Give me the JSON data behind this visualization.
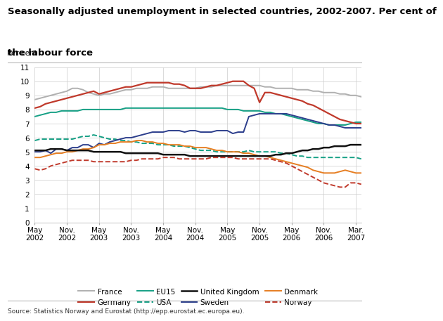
{
  "title_line1": "Seasonally adjusted unemployment in selected countries, 2002-2007. Per cent of",
  "title_line2": "the labour force",
  "ylabel": "Per cent",
  "source": "Source: Statistics Norway and Eurostat (http://epp.eurostat.ec.europa.eu).",
  "ylim": [
    0,
    11
  ],
  "yticks": [
    0,
    1,
    2,
    3,
    4,
    5,
    6,
    7,
    8,
    9,
    10,
    11
  ],
  "x_tick_positions": [
    0,
    6,
    12,
    18,
    24,
    30,
    36,
    42,
    48,
    54,
    60
  ],
  "x_labels": [
    "May\n2002",
    "Nov.\n2002",
    "May\n2003",
    "Nov.\n2003",
    "May\n2004",
    "Nov.\n2004",
    "May\n2005",
    "Nov.\n2005",
    "May\n2006",
    "Nov.\n2006",
    "Mar.\n2007"
  ],
  "n_points": 62,
  "series": {
    "France": {
      "color": "#b0b0b0",
      "linestyle": "solid",
      "linewidth": 1.4,
      "values": [
        8.7,
        8.8,
        8.9,
        9.0,
        9.1,
        9.2,
        9.3,
        9.5,
        9.5,
        9.4,
        9.2,
        9.1,
        9.0,
        9.1,
        9.1,
        9.2,
        9.3,
        9.4,
        9.4,
        9.5,
        9.5,
        9.5,
        9.6,
        9.6,
        9.6,
        9.5,
        9.5,
        9.5,
        9.5,
        9.5,
        9.5,
        9.6,
        9.6,
        9.6,
        9.7,
        9.7,
        9.7,
        9.7,
        9.7,
        9.7,
        9.7,
        9.7,
        9.7,
        9.6,
        9.6,
        9.5,
        9.5,
        9.5,
        9.5,
        9.4,
        9.4,
        9.4,
        9.3,
        9.3,
        9.2,
        9.2,
        9.2,
        9.1,
        9.1,
        9.0,
        9.0,
        8.9
      ]
    },
    "Germany": {
      "color": "#c0392b",
      "linestyle": "solid",
      "linewidth": 1.6,
      "values": [
        8.1,
        8.2,
        8.4,
        8.5,
        8.6,
        8.7,
        8.8,
        8.9,
        9.0,
        9.1,
        9.2,
        9.3,
        9.1,
        9.2,
        9.3,
        9.4,
        9.5,
        9.6,
        9.6,
        9.7,
        9.8,
        9.9,
        9.9,
        9.9,
        9.9,
        9.9,
        9.8,
        9.8,
        9.7,
        9.5,
        9.5,
        9.5,
        9.6,
        9.7,
        9.7,
        9.8,
        9.9,
        10.0,
        10.0,
        10.0,
        9.7,
        9.5,
        8.5,
        9.2,
        9.2,
        9.1,
        9.0,
        8.9,
        8.8,
        8.7,
        8.6,
        8.4,
        8.3,
        8.1,
        7.9,
        7.7,
        7.5,
        7.3,
        7.2,
        7.1,
        7.0,
        7.0
      ]
    },
    "EU15": {
      "color": "#16a085",
      "linestyle": "solid",
      "linewidth": 1.4,
      "values": [
        7.5,
        7.6,
        7.7,
        7.8,
        7.8,
        7.9,
        7.9,
        7.9,
        7.9,
        8.0,
        8.0,
        8.0,
        8.0,
        8.0,
        8.0,
        8.0,
        8.0,
        8.1,
        8.1,
        8.1,
        8.1,
        8.1,
        8.1,
        8.1,
        8.1,
        8.1,
        8.1,
        8.1,
        8.1,
        8.1,
        8.1,
        8.1,
        8.1,
        8.1,
        8.1,
        8.1,
        8.0,
        8.0,
        8.0,
        7.9,
        7.9,
        7.9,
        7.9,
        7.8,
        7.8,
        7.7,
        7.7,
        7.6,
        7.5,
        7.4,
        7.3,
        7.2,
        7.1,
        7.0,
        7.0,
        6.9,
        6.9,
        6.9,
        6.9,
        7.0,
        7.1,
        7.1
      ]
    },
    "USA": {
      "color": "#16a085",
      "linestyle": "dashed",
      "linewidth": 1.4,
      "values": [
        5.8,
        5.9,
        5.9,
        5.9,
        5.9,
        5.9,
        5.9,
        5.9,
        6.0,
        6.1,
        6.1,
        6.2,
        6.1,
        6.0,
        5.9,
        5.9,
        5.8,
        5.8,
        5.7,
        5.7,
        5.6,
        5.6,
        5.6,
        5.5,
        5.5,
        5.5,
        5.4,
        5.4,
        5.4,
        5.3,
        5.2,
        5.1,
        5.1,
        5.1,
        5.0,
        5.0,
        5.0,
        5.0,
        5.0,
        5.0,
        5.1,
        5.0,
        5.0,
        5.0,
        5.0,
        5.0,
        4.9,
        4.9,
        4.8,
        4.7,
        4.7,
        4.6,
        4.6,
        4.6,
        4.6,
        4.6,
        4.6,
        4.6,
        4.6,
        4.6,
        4.6,
        4.5
      ]
    },
    "United Kingdom": {
      "color": "#111111",
      "linestyle": "solid",
      "linewidth": 1.8,
      "values": [
        5.1,
        5.1,
        5.1,
        5.2,
        5.2,
        5.2,
        5.1,
        5.1,
        5.1,
        5.1,
        5.1,
        5.0,
        5.0,
        5.0,
        5.0,
        5.0,
        5.0,
        4.9,
        4.9,
        4.9,
        4.9,
        4.9,
        4.9,
        4.9,
        4.8,
        4.8,
        4.8,
        4.8,
        4.8,
        4.7,
        4.7,
        4.7,
        4.7,
        4.7,
        4.7,
        4.7,
        4.7,
        4.7,
        4.7,
        4.7,
        4.7,
        4.7,
        4.7,
        4.7,
        4.7,
        4.8,
        4.8,
        4.9,
        4.9,
        5.0,
        5.1,
        5.1,
        5.2,
        5.2,
        5.3,
        5.3,
        5.4,
        5.4,
        5.4,
        5.5,
        5.5,
        5.5
      ]
    },
    "Sweden": {
      "color": "#2c3e8c",
      "linestyle": "solid",
      "linewidth": 1.4,
      "values": [
        5.0,
        5.0,
        5.1,
        4.9,
        5.2,
        5.2,
        5.1,
        5.3,
        5.3,
        5.5,
        5.5,
        5.3,
        5.6,
        5.5,
        5.7,
        5.8,
        5.9,
        6.0,
        6.0,
        6.1,
        6.2,
        6.3,
        6.4,
        6.4,
        6.4,
        6.5,
        6.5,
        6.5,
        6.4,
        6.5,
        6.5,
        6.4,
        6.4,
        6.4,
        6.5,
        6.5,
        6.5,
        6.3,
        6.4,
        6.4,
        7.5,
        7.6,
        7.7,
        7.7,
        7.7,
        7.7,
        7.7,
        7.7,
        7.6,
        7.5,
        7.4,
        7.3,
        7.2,
        7.1,
        7.0,
        6.9,
        6.9,
        6.8,
        6.7,
        6.7,
        6.7,
        6.7
      ]
    },
    "Denmark": {
      "color": "#e67e22",
      "linestyle": "solid",
      "linewidth": 1.4,
      "values": [
        4.6,
        4.6,
        4.7,
        4.8,
        4.9,
        4.9,
        5.0,
        5.0,
        5.1,
        5.2,
        5.2,
        5.3,
        5.5,
        5.5,
        5.6,
        5.6,
        5.7,
        5.7,
        5.7,
        5.8,
        5.8,
        5.7,
        5.7,
        5.6,
        5.6,
        5.5,
        5.5,
        5.5,
        5.4,
        5.4,
        5.3,
        5.3,
        5.3,
        5.2,
        5.1,
        5.1,
        5.0,
        5.0,
        5.0,
        4.9,
        4.9,
        4.8,
        4.7,
        4.7,
        4.6,
        4.5,
        4.4,
        4.3,
        4.2,
        4.1,
        4.0,
        3.9,
        3.7,
        3.6,
        3.5,
        3.5,
        3.5,
        3.6,
        3.7,
        3.6,
        3.5,
        3.5
      ]
    },
    "Norway": {
      "color": "#c0392b",
      "linestyle": "dashed",
      "linewidth": 1.4,
      "values": [
        3.8,
        3.7,
        3.8,
        4.0,
        4.1,
        4.2,
        4.3,
        4.4,
        4.4,
        4.4,
        4.4,
        4.3,
        4.3,
        4.3,
        4.3,
        4.3,
        4.3,
        4.3,
        4.4,
        4.4,
        4.5,
        4.5,
        4.5,
        4.5,
        4.6,
        4.6,
        4.6,
        4.5,
        4.5,
        4.5,
        4.5,
        4.5,
        4.5,
        4.6,
        4.6,
        4.6,
        4.6,
        4.6,
        4.5,
        4.5,
        4.5,
        4.5,
        4.5,
        4.5,
        4.5,
        4.4,
        4.3,
        4.2,
        4.0,
        3.8,
        3.6,
        3.4,
        3.2,
        3.0,
        2.8,
        2.7,
        2.6,
        2.5,
        2.5,
        2.8,
        2.8,
        2.7
      ]
    }
  },
  "legend_order": [
    "France",
    "Germany",
    "EU15",
    "USA",
    "United Kingdom",
    "Sweden",
    "Denmark",
    "Norway"
  ],
  "background_color": "#ffffff",
  "grid_color": "#cccccc",
  "title_fontsize": 9.5,
  "tick_fontsize": 7.5,
  "ylabel_fontsize": 7.5,
  "source_fontsize": 6.5,
  "legend_fontsize": 7.5
}
